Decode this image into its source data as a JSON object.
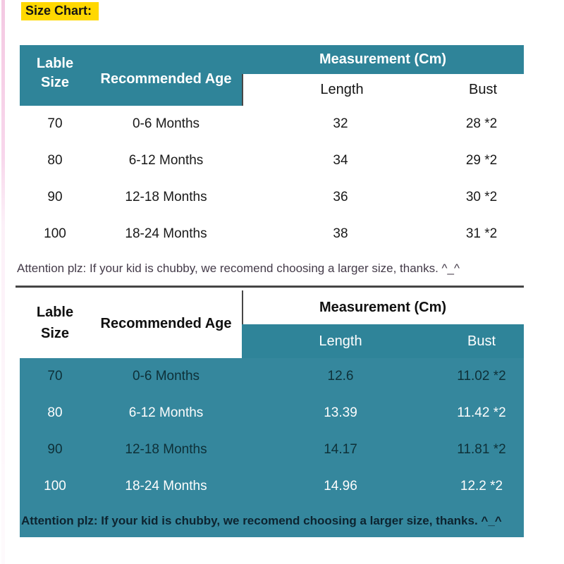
{
  "title": "Size Chart:",
  "colors": {
    "highlight_yellow": "#ffd800",
    "teal_header": "#2f8499",
    "teal_block": "#35879d",
    "dark_row_text": "#0e3038",
    "light_row_text": "#ffffff"
  },
  "tables": [
    {
      "name": "size-chart-cm",
      "header": {
        "label_line1": "Lable",
        "label_line2": "Size",
        "recommended_age": "Recommended Age",
        "measurement": "Measurement (Cm)",
        "length": "Length",
        "bust": "Bust"
      },
      "rows": [
        [
          "70",
          "0-6 Months",
          "32",
          "28 *2"
        ],
        [
          "80",
          "6-12 Months",
          "34",
          "29 *2"
        ],
        [
          "90",
          "12-18 Months",
          "36",
          "30 *2"
        ],
        [
          "100",
          "18-24 Months",
          "38",
          "31 *2"
        ]
      ],
      "note": "Attention plz: If your kid is chubby, we recomend choosing a larger size, thanks. ^_^"
    },
    {
      "name": "size-chart-inch",
      "header": {
        "label_line1": "Lable",
        "label_line2": "Size",
        "recommended_age": "Recommended Age",
        "measurement": "Measurement (Cm)",
        "length": "Length",
        "bust": "Bust"
      },
      "rows": [
        [
          "70",
          "0-6 Months",
          "12.6",
          "11.02 *2"
        ],
        [
          "80",
          "6-12 Months",
          "13.39",
          "11.42 *2"
        ],
        [
          "90",
          "12-18 Months",
          "14.17",
          "11.81 *2"
        ],
        [
          "100",
          "18-24 Months",
          "14.96",
          "12.2 *2"
        ]
      ],
      "note": "Attention plz: If your kid is chubby, we recomend choosing a larger size, thanks. ^_^"
    }
  ]
}
